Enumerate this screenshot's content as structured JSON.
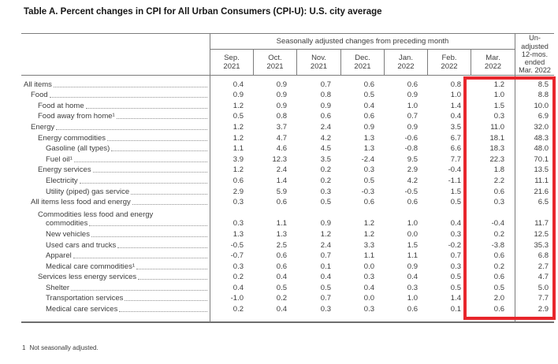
{
  "title": "Table A. Percent changes in CPI for All Urban Consumers (CPI-U): U.S. city average",
  "highlight_color": "#e8262c",
  "table": {
    "spanner": "Seasonally adjusted changes from preceding month",
    "unadjusted_header": "Un-\nadjusted\n12-mos.\nended\nMar. 2022",
    "columns": [
      "Sep.\n2021",
      "Oct.\n2021",
      "Nov.\n2021",
      "Dec.\n2021",
      "Jan.\n2022",
      "Feb.\n2022",
      "Mar.\n2022"
    ],
    "rows": [
      {
        "label": "All items",
        "indent": 0,
        "values": [
          "0.4",
          "0.9",
          "0.7",
          "0.6",
          "0.6",
          "0.8",
          "1.2",
          "8.5"
        ]
      },
      {
        "label": "Food",
        "indent": 1,
        "values": [
          "0.9",
          "0.9",
          "0.8",
          "0.5",
          "0.9",
          "1.0",
          "1.0",
          "8.8"
        ]
      },
      {
        "label": "Food at home",
        "indent": 2,
        "values": [
          "1.2",
          "0.9",
          "0.9",
          "0.4",
          "1.0",
          "1.4",
          "1.5",
          "10.0"
        ]
      },
      {
        "label": "Food away from home¹",
        "indent": 2,
        "values": [
          "0.5",
          "0.8",
          "0.6",
          "0.6",
          "0.7",
          "0.4",
          "0.3",
          "6.9"
        ]
      },
      {
        "label": "Energy",
        "indent": 1,
        "values": [
          "1.2",
          "3.7",
          "2.4",
          "0.9",
          "0.9",
          "3.5",
          "11.0",
          "32.0"
        ]
      },
      {
        "label": "Energy commodities",
        "indent": 2,
        "values": [
          "1.2",
          "4.7",
          "4.2",
          "1.3",
          "-0.6",
          "6.7",
          "18.1",
          "48.3"
        ]
      },
      {
        "label": "Gasoline (all types)",
        "indent": 3,
        "values": [
          "1.1",
          "4.6",
          "4.5",
          "1.3",
          "-0.8",
          "6.6",
          "18.3",
          "48.0"
        ]
      },
      {
        "label": "Fuel oil¹",
        "indent": 3,
        "values": [
          "3.9",
          "12.3",
          "3.5",
          "-2.4",
          "9.5",
          "7.7",
          "22.3",
          "70.1"
        ]
      },
      {
        "label": "Energy services",
        "indent": 2,
        "values": [
          "1.2",
          "2.4",
          "0.2",
          "0.3",
          "2.9",
          "-0.4",
          "1.8",
          "13.5"
        ]
      },
      {
        "label": "Electricity",
        "indent": 3,
        "values": [
          "0.6",
          "1.4",
          "0.2",
          "0.5",
          "4.2",
          "-1.1",
          "2.2",
          "11.1"
        ]
      },
      {
        "label": "Utility (piped) gas service",
        "indent": 3,
        "values": [
          "2.9",
          "5.9",
          "0.3",
          "-0.3",
          "-0.5",
          "1.5",
          "0.6",
          "21.6"
        ]
      },
      {
        "label": "All items less food and energy",
        "indent": 1,
        "values": [
          "0.3",
          "0.6",
          "0.5",
          "0.6",
          "0.6",
          "0.5",
          "0.3",
          "6.5"
        ]
      },
      {
        "label": "Commodities less food and energy",
        "label2": "commodities",
        "indent": 2,
        "values": [
          "0.3",
          "1.1",
          "0.9",
          "1.2",
          "1.0",
          "0.4",
          "-0.4",
          "11.7"
        ]
      },
      {
        "label": "New vehicles",
        "indent": 3,
        "values": [
          "1.3",
          "1.3",
          "1.2",
          "1.2",
          "0.0",
          "0.3",
          "0.2",
          "12.5"
        ]
      },
      {
        "label": "Used cars and trucks",
        "indent": 3,
        "values": [
          "-0.5",
          "2.5",
          "2.4",
          "3.3",
          "1.5",
          "-0.2",
          "-3.8",
          "35.3"
        ]
      },
      {
        "label": "Apparel",
        "indent": 3,
        "values": [
          "-0.7",
          "0.6",
          "0.7",
          "1.1",
          "1.1",
          "0.7",
          "0.6",
          "6.8"
        ]
      },
      {
        "label": "Medical care commodities¹",
        "indent": 3,
        "values": [
          "0.3",
          "0.6",
          "0.1",
          "0.0",
          "0.9",
          "0.3",
          "0.2",
          "2.7"
        ]
      },
      {
        "label": "Services less energy services",
        "indent": 2,
        "values": [
          "0.2",
          "0.4",
          "0.4",
          "0.3",
          "0.4",
          "0.5",
          "0.6",
          "4.7"
        ]
      },
      {
        "label": "Shelter",
        "indent": 3,
        "values": [
          "0.4",
          "0.5",
          "0.5",
          "0.4",
          "0.3",
          "0.5",
          "0.5",
          "5.0"
        ]
      },
      {
        "label": "Transportation services",
        "indent": 3,
        "values": [
          "-1.0",
          "0.2",
          "0.7",
          "0.0",
          "1.0",
          "1.4",
          "2.0",
          "7.7"
        ]
      },
      {
        "label": "Medical care services",
        "indent": 3,
        "values": [
          "0.2",
          "0.4",
          "0.3",
          "0.3",
          "0.6",
          "0.1",
          "0.6",
          "2.9"
        ]
      }
    ]
  },
  "footnote": {
    "marker": "1",
    "text": "Not seasonally adjusted."
  }
}
